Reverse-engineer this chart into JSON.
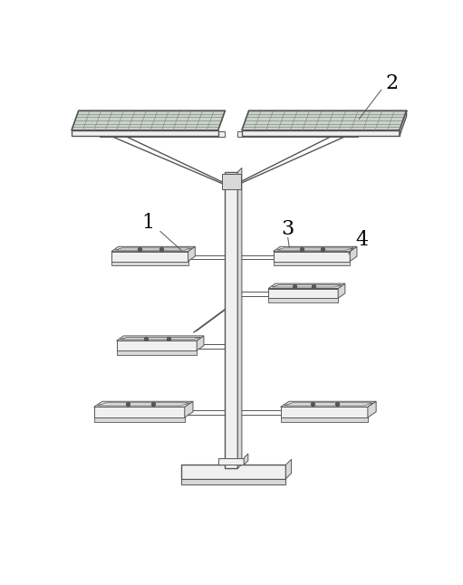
{
  "bg_color": "#ffffff",
  "line_color": "#555555",
  "fill_light": "#f0f0f0",
  "fill_medium": "#d8d8d8",
  "fill_dark": "#b8b8b8",
  "fill_panel_face": "#e8ede8",
  "solar_grid_color": "#888888",
  "solar_panel_top": "#c8d4c8",
  "label_fontsize": 16
}
